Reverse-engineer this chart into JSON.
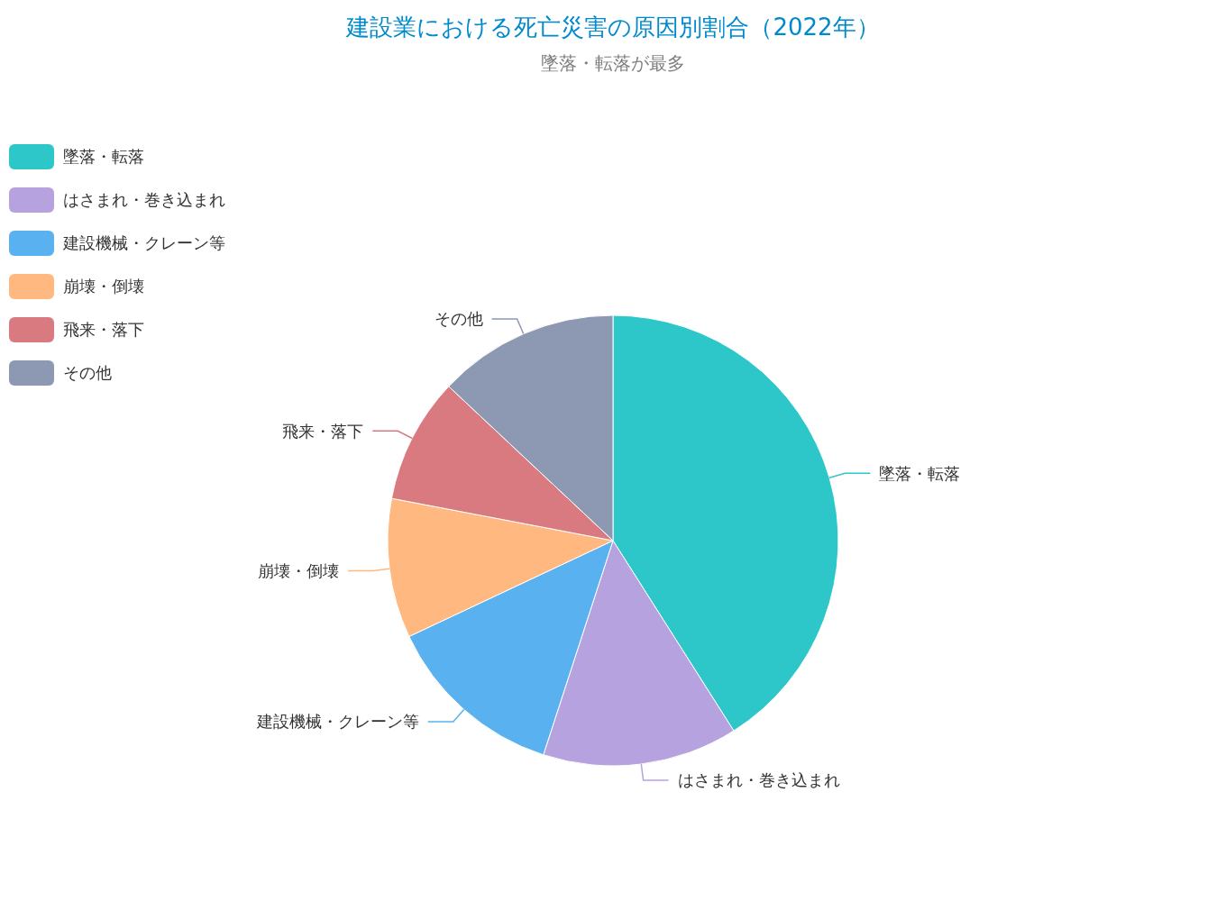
{
  "chart_data": {
    "type": "pie",
    "title": "建設業における死亡災害の原因別割合（2022年）",
    "subtitle": "墜落・転落が最多",
    "categories": [
      "墜落・転落",
      "はさまれ・巻き込まれ",
      "建設機械・クレーン等",
      "崩壊・倒壊",
      "飛来・落下",
      "その他"
    ],
    "values": [
      41,
      14,
      13,
      10,
      9,
      13
    ],
    "colors": [
      "#2ec7c9",
      "#b6a2de",
      "#5ab1ef",
      "#ffb980",
      "#d87a80",
      "#8d98b3"
    ],
    "legend": "top left"
  }
}
